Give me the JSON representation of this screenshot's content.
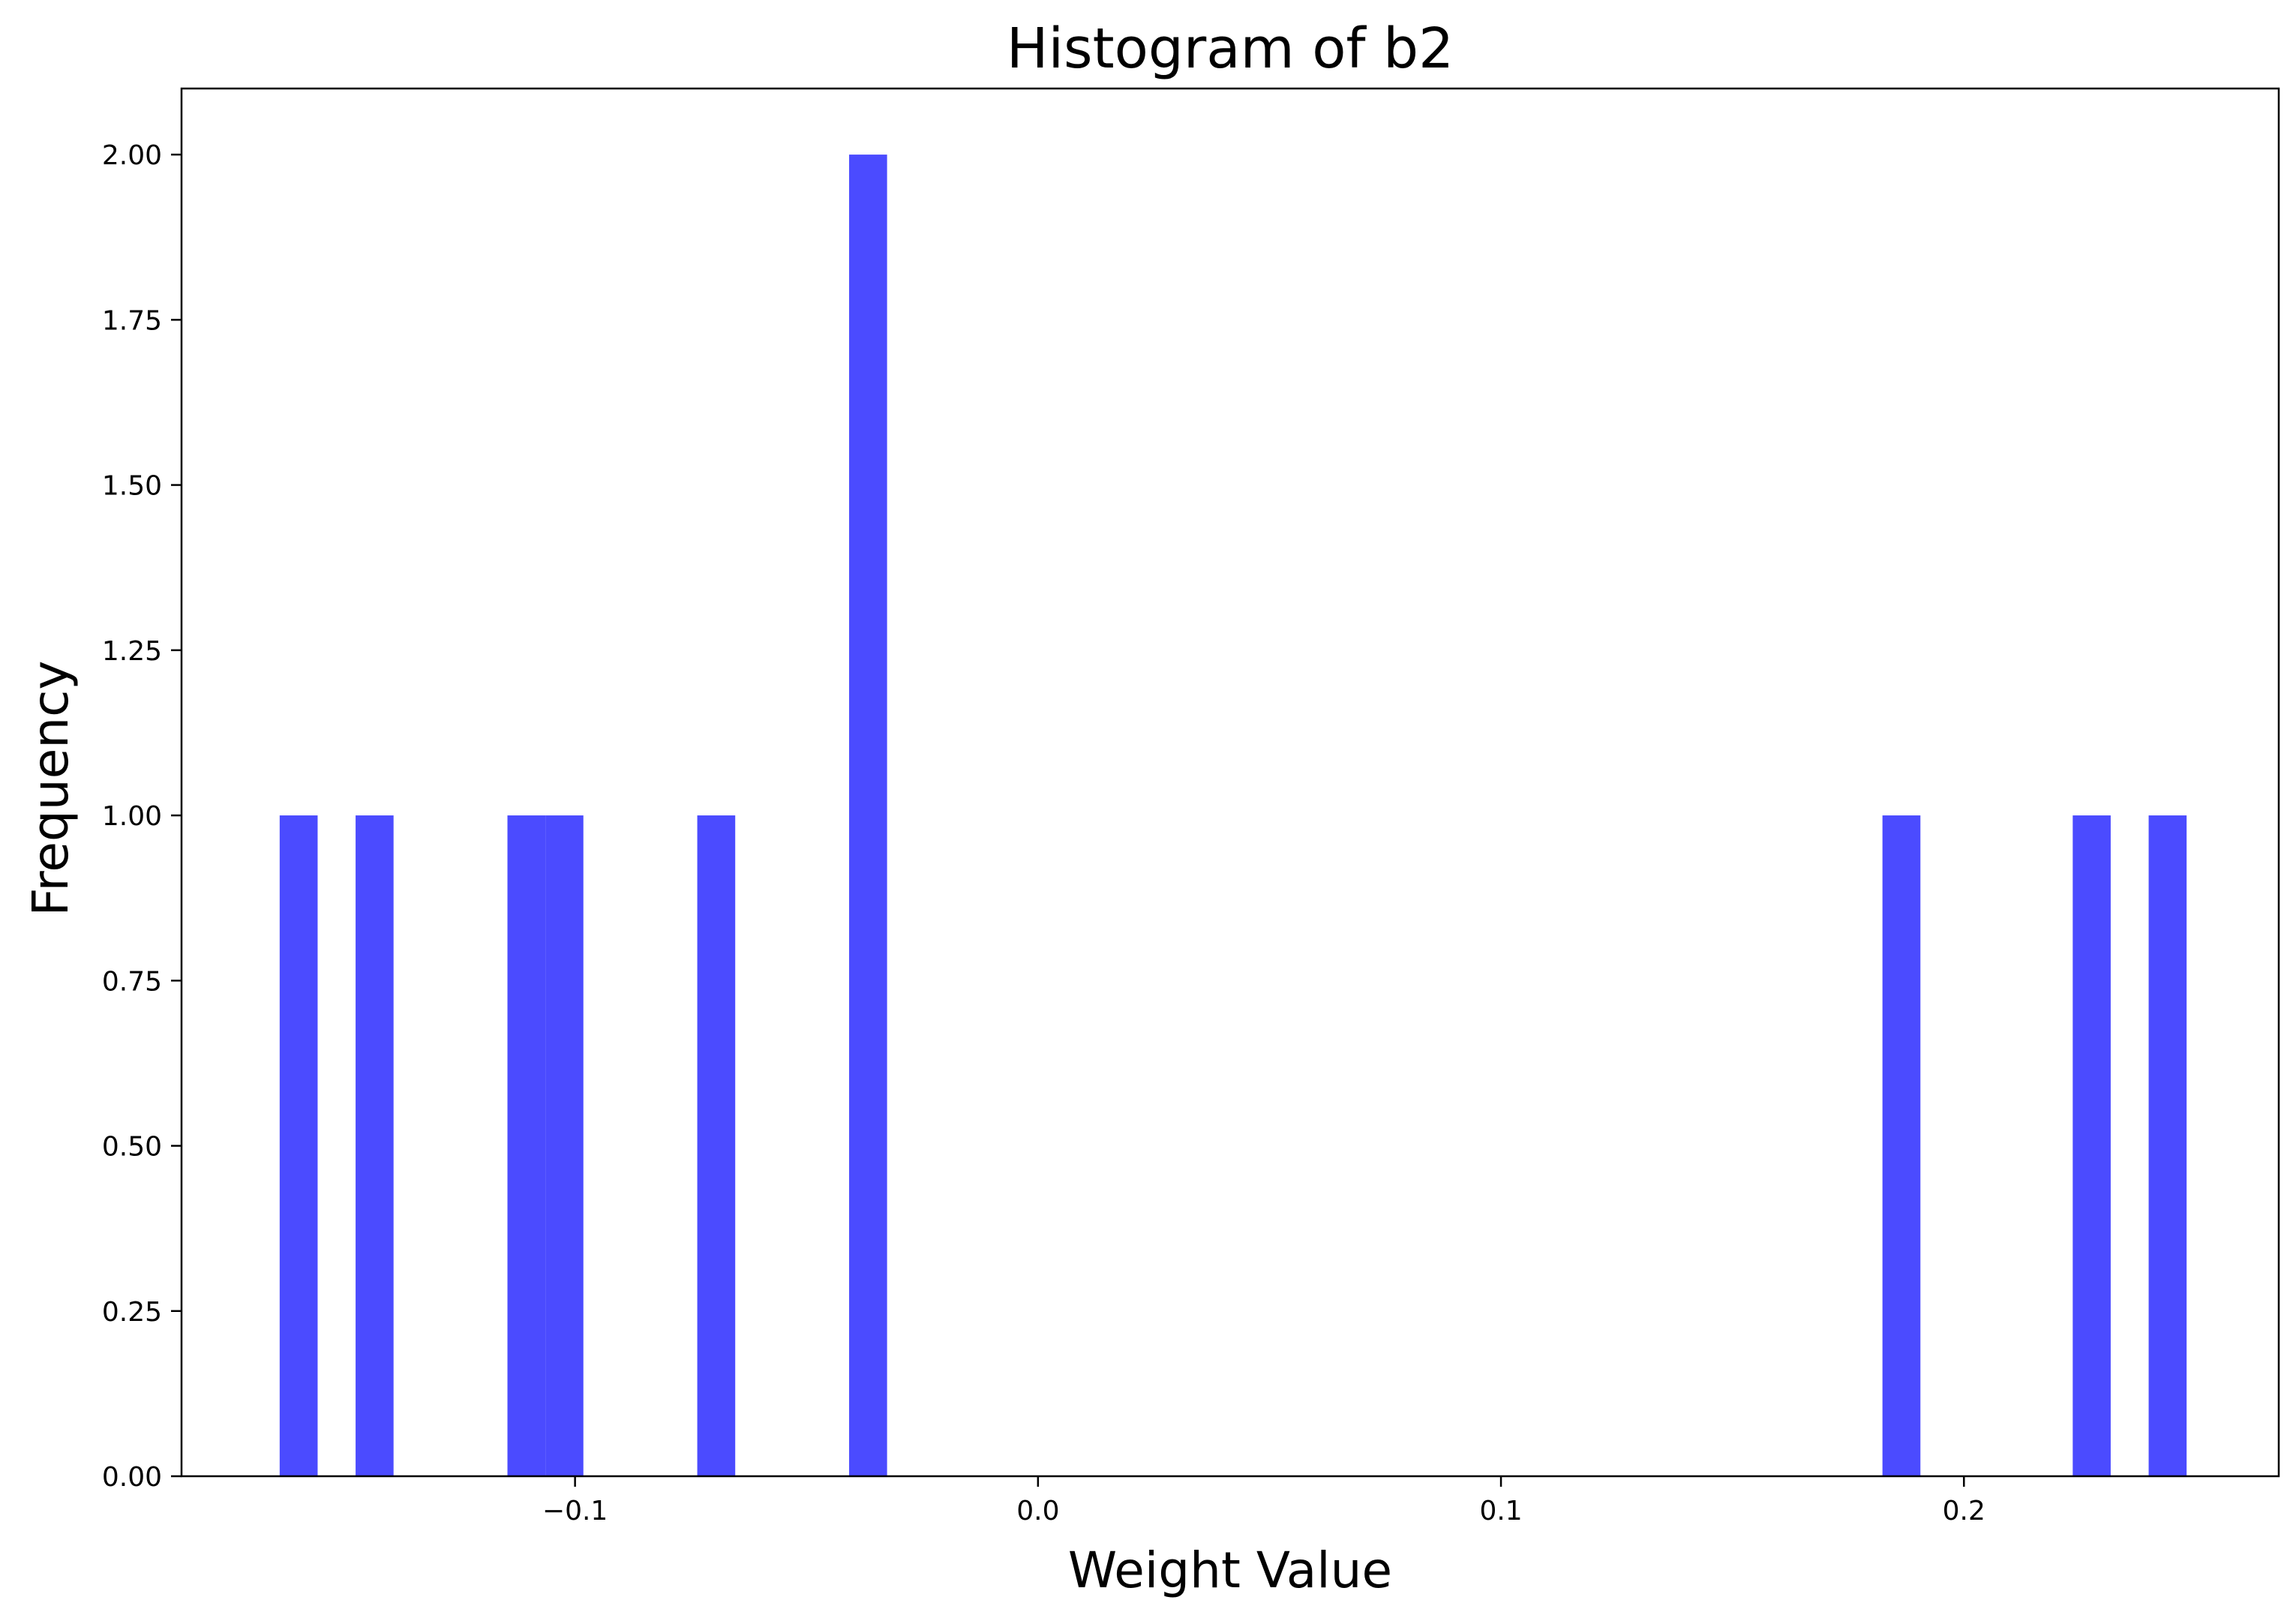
{
  "chart_data": {
    "type": "bar",
    "title": "Histogram of b2",
    "xlabel": "Weight Value",
    "ylabel": "Frequency",
    "xlim": [
      -0.185,
      0.268
    ],
    "ylim": [
      0,
      2.1
    ],
    "bin_width": 0.0082,
    "bins": [
      {
        "start": -0.1638,
        "count": 1
      },
      {
        "start": -0.1474,
        "count": 1
      },
      {
        "start": -0.1146,
        "count": 1
      },
      {
        "start": -0.1064,
        "count": 1
      },
      {
        "start": -0.0736,
        "count": 1
      },
      {
        "start": -0.0408,
        "count": 2
      },
      {
        "start": 0.1824,
        "count": 1
      },
      {
        "start": 0.2235,
        "count": 1
      },
      {
        "start": 0.2399,
        "count": 1
      }
    ],
    "x_ticks": [
      {
        "value": -0.1,
        "label": "−0.1"
      },
      {
        "value": 0.0,
        "label": "0.0"
      },
      {
        "value": 0.1,
        "label": "0.1"
      },
      {
        "value": 0.2,
        "label": "0.2"
      }
    ],
    "y_ticks": [
      {
        "value": 0.0,
        "label": "0.00"
      },
      {
        "value": 0.25,
        "label": "0.25"
      },
      {
        "value": 0.5,
        "label": "0.50"
      },
      {
        "value": 0.75,
        "label": "0.75"
      },
      {
        "value": 1.0,
        "label": "1.00"
      },
      {
        "value": 1.25,
        "label": "1.25"
      },
      {
        "value": 1.5,
        "label": "1.50"
      },
      {
        "value": 1.75,
        "label": "1.75"
      },
      {
        "value": 2.0,
        "label": "2.00"
      }
    ],
    "bar_color": "#4b4bff",
    "grid": false,
    "legend": "none"
  }
}
